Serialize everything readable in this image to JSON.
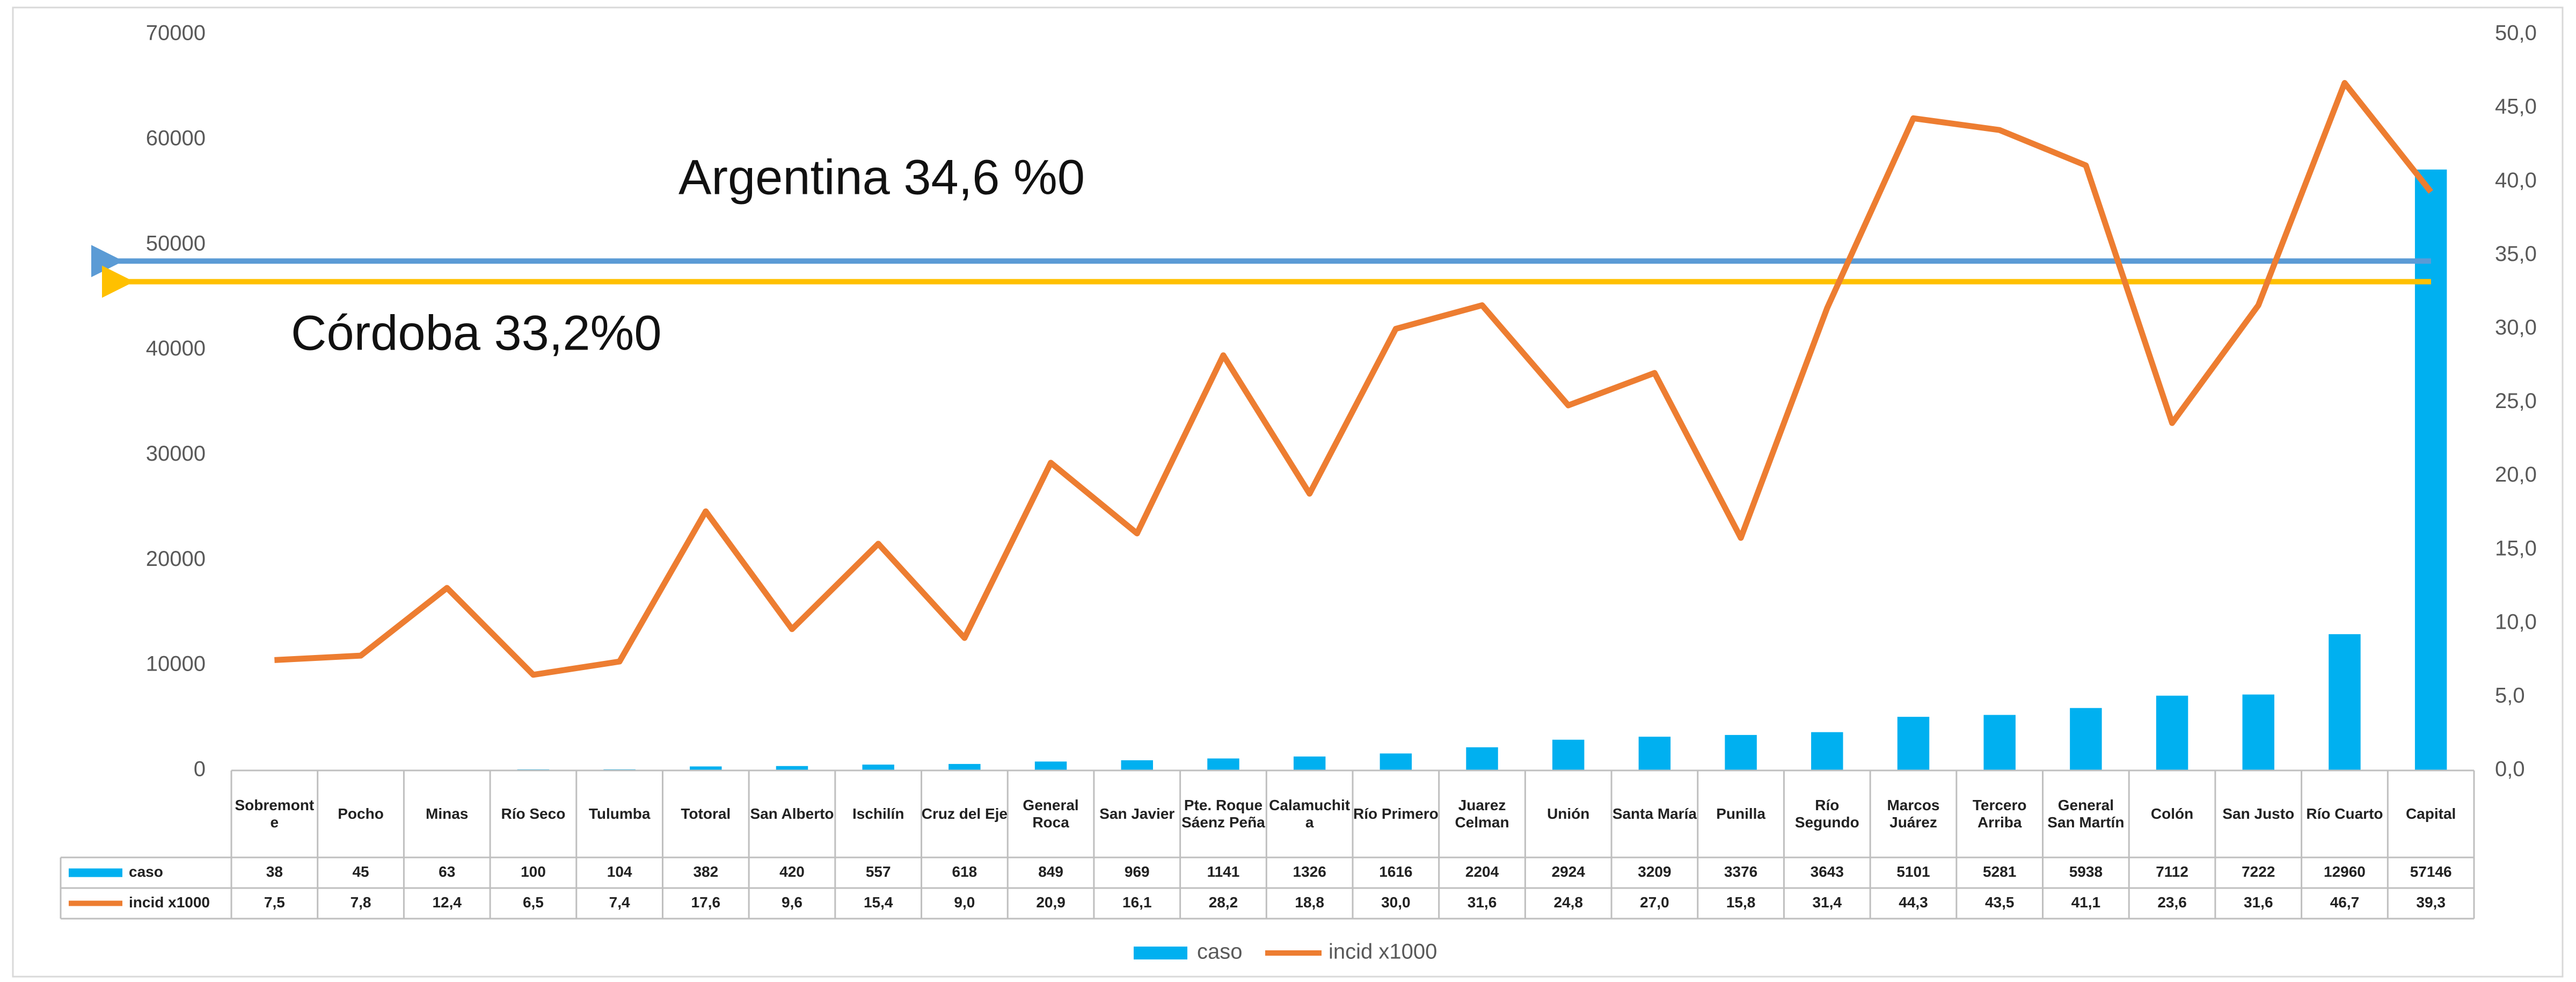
{
  "chart_data": {
    "type": "combo",
    "categories": [
      "Sobremonte",
      "Pocho",
      "Minas",
      "Río Seco",
      "Tulumba",
      "Totoral",
      "San Alberto",
      "Ischilín",
      "Cruz del Eje",
      "General Roca",
      "San Javier",
      "Pte. Roque Sáenz Peña",
      "Calamuchita",
      "Río Primero",
      "Juarez Celman",
      "Unión",
      "Santa María",
      "Punilla",
      "Río Segundo",
      "Marcos Juárez",
      "Tercero Arriba",
      "General San Martín",
      "Colón",
      "San Justo",
      "Río Cuarto",
      "Capital"
    ],
    "series": [
      {
        "name": "caso",
        "type": "bar",
        "color": "#00b0f0",
        "values": [
          38,
          45,
          63,
          100,
          104,
          382,
          420,
          557,
          618,
          849,
          969,
          1141,
          1326,
          1616,
          2204,
          2924,
          3209,
          3376,
          3643,
          5101,
          5281,
          5938,
          7112,
          7222,
          12960,
          57146
        ]
      },
      {
        "name": "incid x1000",
        "type": "line",
        "axis": "y2",
        "color": "#ed7d31",
        "values": [
          7.5,
          7.8,
          12.4,
          6.5,
          7.4,
          17.6,
          9.6,
          15.4,
          9.0,
          20.9,
          16.1,
          28.2,
          18.8,
          30.0,
          31.6,
          24.8,
          27.0,
          15.8,
          31.4,
          44.3,
          43.5,
          41.1,
          23.6,
          31.6,
          46.7,
          39.3
        ],
        "value_labels": [
          "7,5",
          "7,8",
          "12,4",
          "6,5",
          "7,4",
          "17,6",
          "9,6",
          "15,4",
          "9,0",
          "20,9",
          "16,1",
          "28,2",
          "18,8",
          "30,0",
          "31,6",
          "24,8",
          "27,0",
          "15,8",
          "31,4",
          "44,3",
          "43,5",
          "41,1",
          "23,6",
          "31,6",
          "46,7",
          "39,3"
        ]
      }
    ],
    "ylim": [
      0,
      70000
    ],
    "yticks": [
      0,
      10000,
      20000,
      30000,
      40000,
      50000,
      60000,
      70000
    ],
    "y2lim": [
      0,
      50
    ],
    "y2ticks": [
      {
        "value": 0,
        "label": "0,0"
      },
      {
        "value": 5,
        "label": "5,0"
      },
      {
        "value": 10,
        "label": "10,0"
      },
      {
        "value": 15,
        "label": "15,0"
      },
      {
        "value": 20,
        "label": "20,0"
      },
      {
        "value": 25,
        "label": "25,0"
      },
      {
        "value": 30,
        "label": "30,0"
      },
      {
        "value": 35,
        "label": "35,0"
      },
      {
        "value": 40,
        "label": "40,0"
      },
      {
        "value": 45,
        "label": "45,0"
      },
      {
        "value": 50,
        "label": "50,0"
      }
    ],
    "annotations": [
      {
        "text": "Argentina 34,6 %0",
        "value": 34.6,
        "color": "#5b9bd5"
      },
      {
        "text": "Córdoba 33,2%0",
        "value": 33.2,
        "color": "#ffc000"
      }
    ],
    "legend": "bottom"
  }
}
